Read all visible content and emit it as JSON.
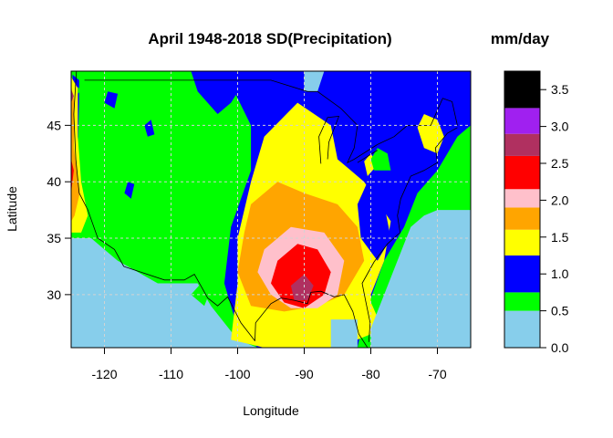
{
  "chart_data": {
    "type": "heatmap",
    "title": "April 1948-2018 SD(Precipitation)",
    "unit_label": "mm/day",
    "xlabel": "Longitude",
    "ylabel": "Latitude",
    "xlim": [
      -125,
      -65
    ],
    "ylim": [
      25.3,
      49.8
    ],
    "xticks": [
      -120,
      -110,
      -100,
      -90,
      -80,
      -70
    ],
    "yticks": [
      30,
      35,
      40,
      45
    ],
    "xtick_labels": [
      "-120",
      "-110",
      "-100",
      "-90",
      "-80",
      "-70"
    ],
    "ytick_labels": [
      "30",
      "35",
      "40",
      "45"
    ],
    "grid": true,
    "legend": {
      "position": "right",
      "breaks": [
        0.0,
        0.25,
        0.5,
        0.75,
        1.0,
        1.25,
        1.5,
        1.75,
        2.0,
        2.25,
        2.5,
        2.75,
        3.0,
        3.25,
        3.5,
        3.75
      ],
      "colors": [
        "#87CEEB",
        "#00FF00",
        "#0000FF",
        "#FFFF00",
        "#FFA500",
        "#FFC0CB",
        "#FF0000",
        "#B03060",
        "#A020F0",
        "#000000"
      ],
      "class_bounds": [
        [
          0.0,
          0.5
        ],
        [
          0.5,
          0.75
        ],
        [
          0.75,
          1.25
        ],
        [
          1.25,
          1.6
        ],
        [
          1.6,
          1.9
        ],
        [
          1.9,
          2.15
        ],
        [
          2.15,
          2.6
        ],
        [
          2.6,
          2.9
        ],
        [
          2.9,
          3.25
        ],
        [
          3.25,
          3.75
        ]
      ],
      "tick_values": [
        0.0,
        0.5,
        1.0,
        1.5,
        2.0,
        2.5,
        3.0,
        3.5
      ],
      "tick_labels": [
        "0.0",
        "0.5",
        "1.0",
        "1.5",
        "2.0",
        "2.5",
        "3.0",
        "3.5"
      ]
    },
    "field_regions": [
      {
        "level": "sd >= 0.5",
        "color": "#00FF00",
        "polygon": [
          [
            -125,
            49.8
          ],
          [
            -125,
            35
          ],
          [
            -122,
            35
          ],
          [
            -118,
            33
          ],
          [
            -112,
            31
          ],
          [
            -106,
            31
          ],
          [
            -104,
            29
          ],
          [
            -100,
            26
          ],
          [
            -97,
            25.3
          ],
          [
            -65,
            25.3
          ],
          [
            -65,
            49.8
          ]
        ]
      },
      {
        "level": "sd >= 1.0",
        "color": "#0000FF",
        "polygon": [
          [
            -102,
            49.8
          ],
          [
            -98,
            45
          ],
          [
            -98,
            41
          ],
          [
            -101,
            36
          ],
          [
            -102,
            31
          ],
          [
            -100,
            27
          ],
          [
            -97,
            25.3
          ],
          [
            -82,
            25.3
          ],
          [
            -81,
            28
          ],
          [
            -78,
            33
          ],
          [
            -75,
            36
          ],
          [
            -73,
            39
          ],
          [
            -70,
            41
          ],
          [
            -67,
            44
          ],
          [
            -65,
            45
          ],
          [
            -65,
            49.8
          ]
        ]
      },
      {
        "level": "sd >= 1.5",
        "color": "#FFFF00",
        "polygon": [
          [
            -96,
            44
          ],
          [
            -91,
            47
          ],
          [
            -86,
            45
          ],
          [
            -85,
            42
          ],
          [
            -81,
            40
          ],
          [
            -77,
            36.5
          ],
          [
            -78,
            33
          ],
          [
            -80,
            30
          ],
          [
            -80,
            26.5
          ],
          [
            -85,
            25.3
          ],
          [
            -96,
            25.3
          ],
          [
            -101,
            26
          ],
          [
            -100,
            31
          ],
          [
            -100,
            35
          ],
          [
            -98,
            40
          ]
        ]
      },
      {
        "level": "sd >= 1.75",
        "color": "#FFA500",
        "polygon": [
          [
            -98,
            38
          ],
          [
            -94,
            40
          ],
          [
            -90,
            39
          ],
          [
            -85,
            38
          ],
          [
            -82,
            36
          ],
          [
            -81,
            33
          ],
          [
            -84,
            30
          ],
          [
            -88,
            29
          ],
          [
            -93,
            28.5
          ],
          [
            -98,
            29
          ],
          [
            -100,
            32
          ],
          [
            -99,
            35.5
          ]
        ]
      },
      {
        "level": "sd >= 2.0",
        "color": "#FFC0CB",
        "polygon": [
          [
            -96,
            34
          ],
          [
            -92,
            36
          ],
          [
            -87,
            35.5
          ],
          [
            -84,
            33
          ],
          [
            -85,
            30
          ],
          [
            -88,
            28.8
          ],
          [
            -92,
            28.8
          ],
          [
            -95,
            30
          ],
          [
            -97,
            32
          ]
        ]
      },
      {
        "level": "sd >= 2.25",
        "color": "#FF0000",
        "polygon": [
          [
            -94,
            33
          ],
          [
            -91,
            34.5
          ],
          [
            -88,
            34
          ],
          [
            -86,
            32
          ],
          [
            -87,
            30
          ],
          [
            -90,
            28.8
          ],
          [
            -93,
            29.3
          ],
          [
            -95,
            31
          ]
        ]
      },
      {
        "level": "sd >= 2.5",
        "color": "#B03060",
        "polygon": [
          [
            -92,
            30.8
          ],
          [
            -90,
            31.8
          ],
          [
            -88.6,
            30.8
          ],
          [
            -89.5,
            29.5
          ],
          [
            -91.5,
            29.5
          ]
        ]
      },
      {
        "level": "sd >= 0.5",
        "color": "#00FF00",
        "polygon": [
          [
            -125,
            49.8
          ],
          [
            -124.3,
            49.8
          ],
          [
            -124.5,
            46
          ],
          [
            -124.8,
            41
          ],
          [
            -125,
            38
          ]
        ]
      },
      {
        "level": "sd >= 1.0",
        "color": "#0000FF",
        "polygon": [
          [
            -124.8,
            49.5
          ],
          [
            -123.8,
            49
          ],
          [
            -123.8,
            47
          ],
          [
            -124,
            43
          ],
          [
            -124.5,
            40
          ],
          [
            -124.8,
            39
          ]
        ]
      },
      {
        "level": "sd >= 1.5",
        "color": "#FFFF00",
        "polygon": [
          [
            -125,
            49.3
          ],
          [
            -124,
            48.3
          ],
          [
            -124,
            44
          ],
          [
            -123.5,
            40
          ],
          [
            -122.5,
            37
          ],
          [
            -123.5,
            35.5
          ],
          [
            -125,
            35.5
          ]
        ]
      },
      {
        "level": "sd >= 1.75",
        "color": "#FFA500",
        "polygon": [
          [
            -125,
            48.5
          ],
          [
            -124.5,
            47
          ],
          [
            -124.6,
            43
          ],
          [
            -123.7,
            39
          ],
          [
            -124.5,
            37
          ],
          [
            -125,
            36.5
          ]
        ]
      },
      {
        "level": "sd >= 2.15",
        "color": "#FF0000",
        "polygon": [
          [
            -125,
            42
          ],
          [
            -124.6,
            41
          ],
          [
            -124.9,
            39.5
          ],
          [
            -125,
            39
          ]
        ]
      },
      {
        "level": "sd >= 2.5",
        "color": "#B03060",
        "polygon": [
          [
            -125,
            48.2
          ],
          [
            -124.6,
            47.6
          ],
          [
            -125,
            47
          ]
        ]
      },
      {
        "level": "sd >= 0.5",
        "color": "#00FF00",
        "polygon": [
          [
            -124,
            48.4
          ],
          [
            -123.5,
            48.1
          ],
          [
            -124,
            47.8
          ]
        ]
      },
      {
        "level": "sd >= 1.0",
        "color": "#0000FF",
        "polygon": [
          [
            -107,
            49.8
          ],
          [
            -106,
            48
          ],
          [
            -103,
            46
          ],
          [
            -101,
            47
          ],
          [
            -98,
            49.8
          ]
        ]
      },
      {
        "level": "sd >= 1.0",
        "color": "#0000FF",
        "polygon": [
          [
            -114,
            45
          ],
          [
            -113.5,
            44
          ],
          [
            -112.5,
            44.2
          ],
          [
            -113,
            45.5
          ]
        ]
      },
      {
        "level": "sd >= 1.0",
        "color": "#0000FF",
        "polygon": [
          [
            -117,
            39
          ],
          [
            -116,
            38.5
          ],
          [
            -115.5,
            39.8
          ],
          [
            -116.5,
            40
          ]
        ]
      },
      {
        "level": "sd >= 1.0",
        "color": "#0000FF",
        "polygon": [
          [
            -120,
            47
          ],
          [
            -118.5,
            46.5
          ],
          [
            -118,
            47.8
          ],
          [
            -119.5,
            48
          ]
        ]
      },
      {
        "level": "sd >= 0.5",
        "color": "#00FF00",
        "polygon": [
          [
            -107,
            30
          ],
          [
            -105.5,
            31
          ],
          [
            -104,
            30.5
          ],
          [
            -105,
            29
          ]
        ]
      },
      {
        "level": "sd >= 1.0",
        "color": "#0000FF",
        "polygon": [
          [
            -80.5,
            40
          ],
          [
            -78,
            38
          ],
          [
            -77,
            35
          ],
          [
            -79,
            33
          ],
          [
            -81.5,
            35
          ],
          [
            -82,
            38
          ]
        ]
      },
      {
        "level": "sd >= 1.5",
        "color": "#FFFF00",
        "polygon": [
          [
            -80,
            42.5
          ],
          [
            -79,
            41.5
          ],
          [
            -80.5,
            40.5
          ],
          [
            -81,
            41.8
          ]
        ]
      },
      {
        "level": "sd >= 0.5",
        "color": "#00FF00",
        "polygon": [
          [
            -79,
            43
          ],
          [
            -77.5,
            42.5
          ],
          [
            -77,
            41
          ],
          [
            -79.5,
            41
          ],
          [
            -80,
            42
          ]
        ]
      },
      {
        "level": "sd >= 1.0",
        "color": "#0000FF",
        "polygon": [
          [
            -83,
            46
          ],
          [
            -81,
            47
          ],
          [
            -79,
            45
          ],
          [
            -80,
            43.5
          ],
          [
            -82,
            44
          ]
        ]
      },
      {
        "level": "sd >= 1.5",
        "color": "#FFFF00",
        "polygon": [
          [
            -72,
            46
          ],
          [
            -70,
            45.5
          ],
          [
            -69,
            44
          ],
          [
            -70,
            42.5
          ],
          [
            -72,
            43
          ],
          [
            -73,
            44.8
          ]
        ]
      },
      {
        "level": "sd >= 1.5",
        "color": "#FFFF00",
        "polygon": [
          [
            -80.5,
            30
          ],
          [
            -79,
            28
          ],
          [
            -80.5,
            26.5
          ],
          [
            -81.5,
            28
          ]
        ]
      },
      {
        "level": "sd >= 0.0",
        "color": "#87CEEB",
        "polygon": [
          [
            -86,
            27.8
          ],
          [
            -82,
            27.8
          ],
          [
            -82,
            25.3
          ],
          [
            -86,
            25.3
          ]
        ]
      },
      {
        "level": "sd >= 0.0",
        "color": "#87CEEB",
        "polygon": [
          [
            -90,
            49.8
          ],
          [
            -87,
            49.8
          ],
          [
            -88,
            48
          ],
          [
            -90,
            48
          ]
        ]
      },
      {
        "level": "sd >= 0.0",
        "color": "#87CEEB",
        "polygon": [
          [
            -70,
            37.5
          ],
          [
            -65,
            37.5
          ],
          [
            -65,
            25.3
          ],
          [
            -80,
            25.3
          ],
          [
            -80,
            27
          ],
          [
            -78,
            30
          ],
          [
            -76,
            33
          ],
          [
            -74,
            36
          ],
          [
            -72,
            37
          ]
        ]
      }
    ]
  }
}
